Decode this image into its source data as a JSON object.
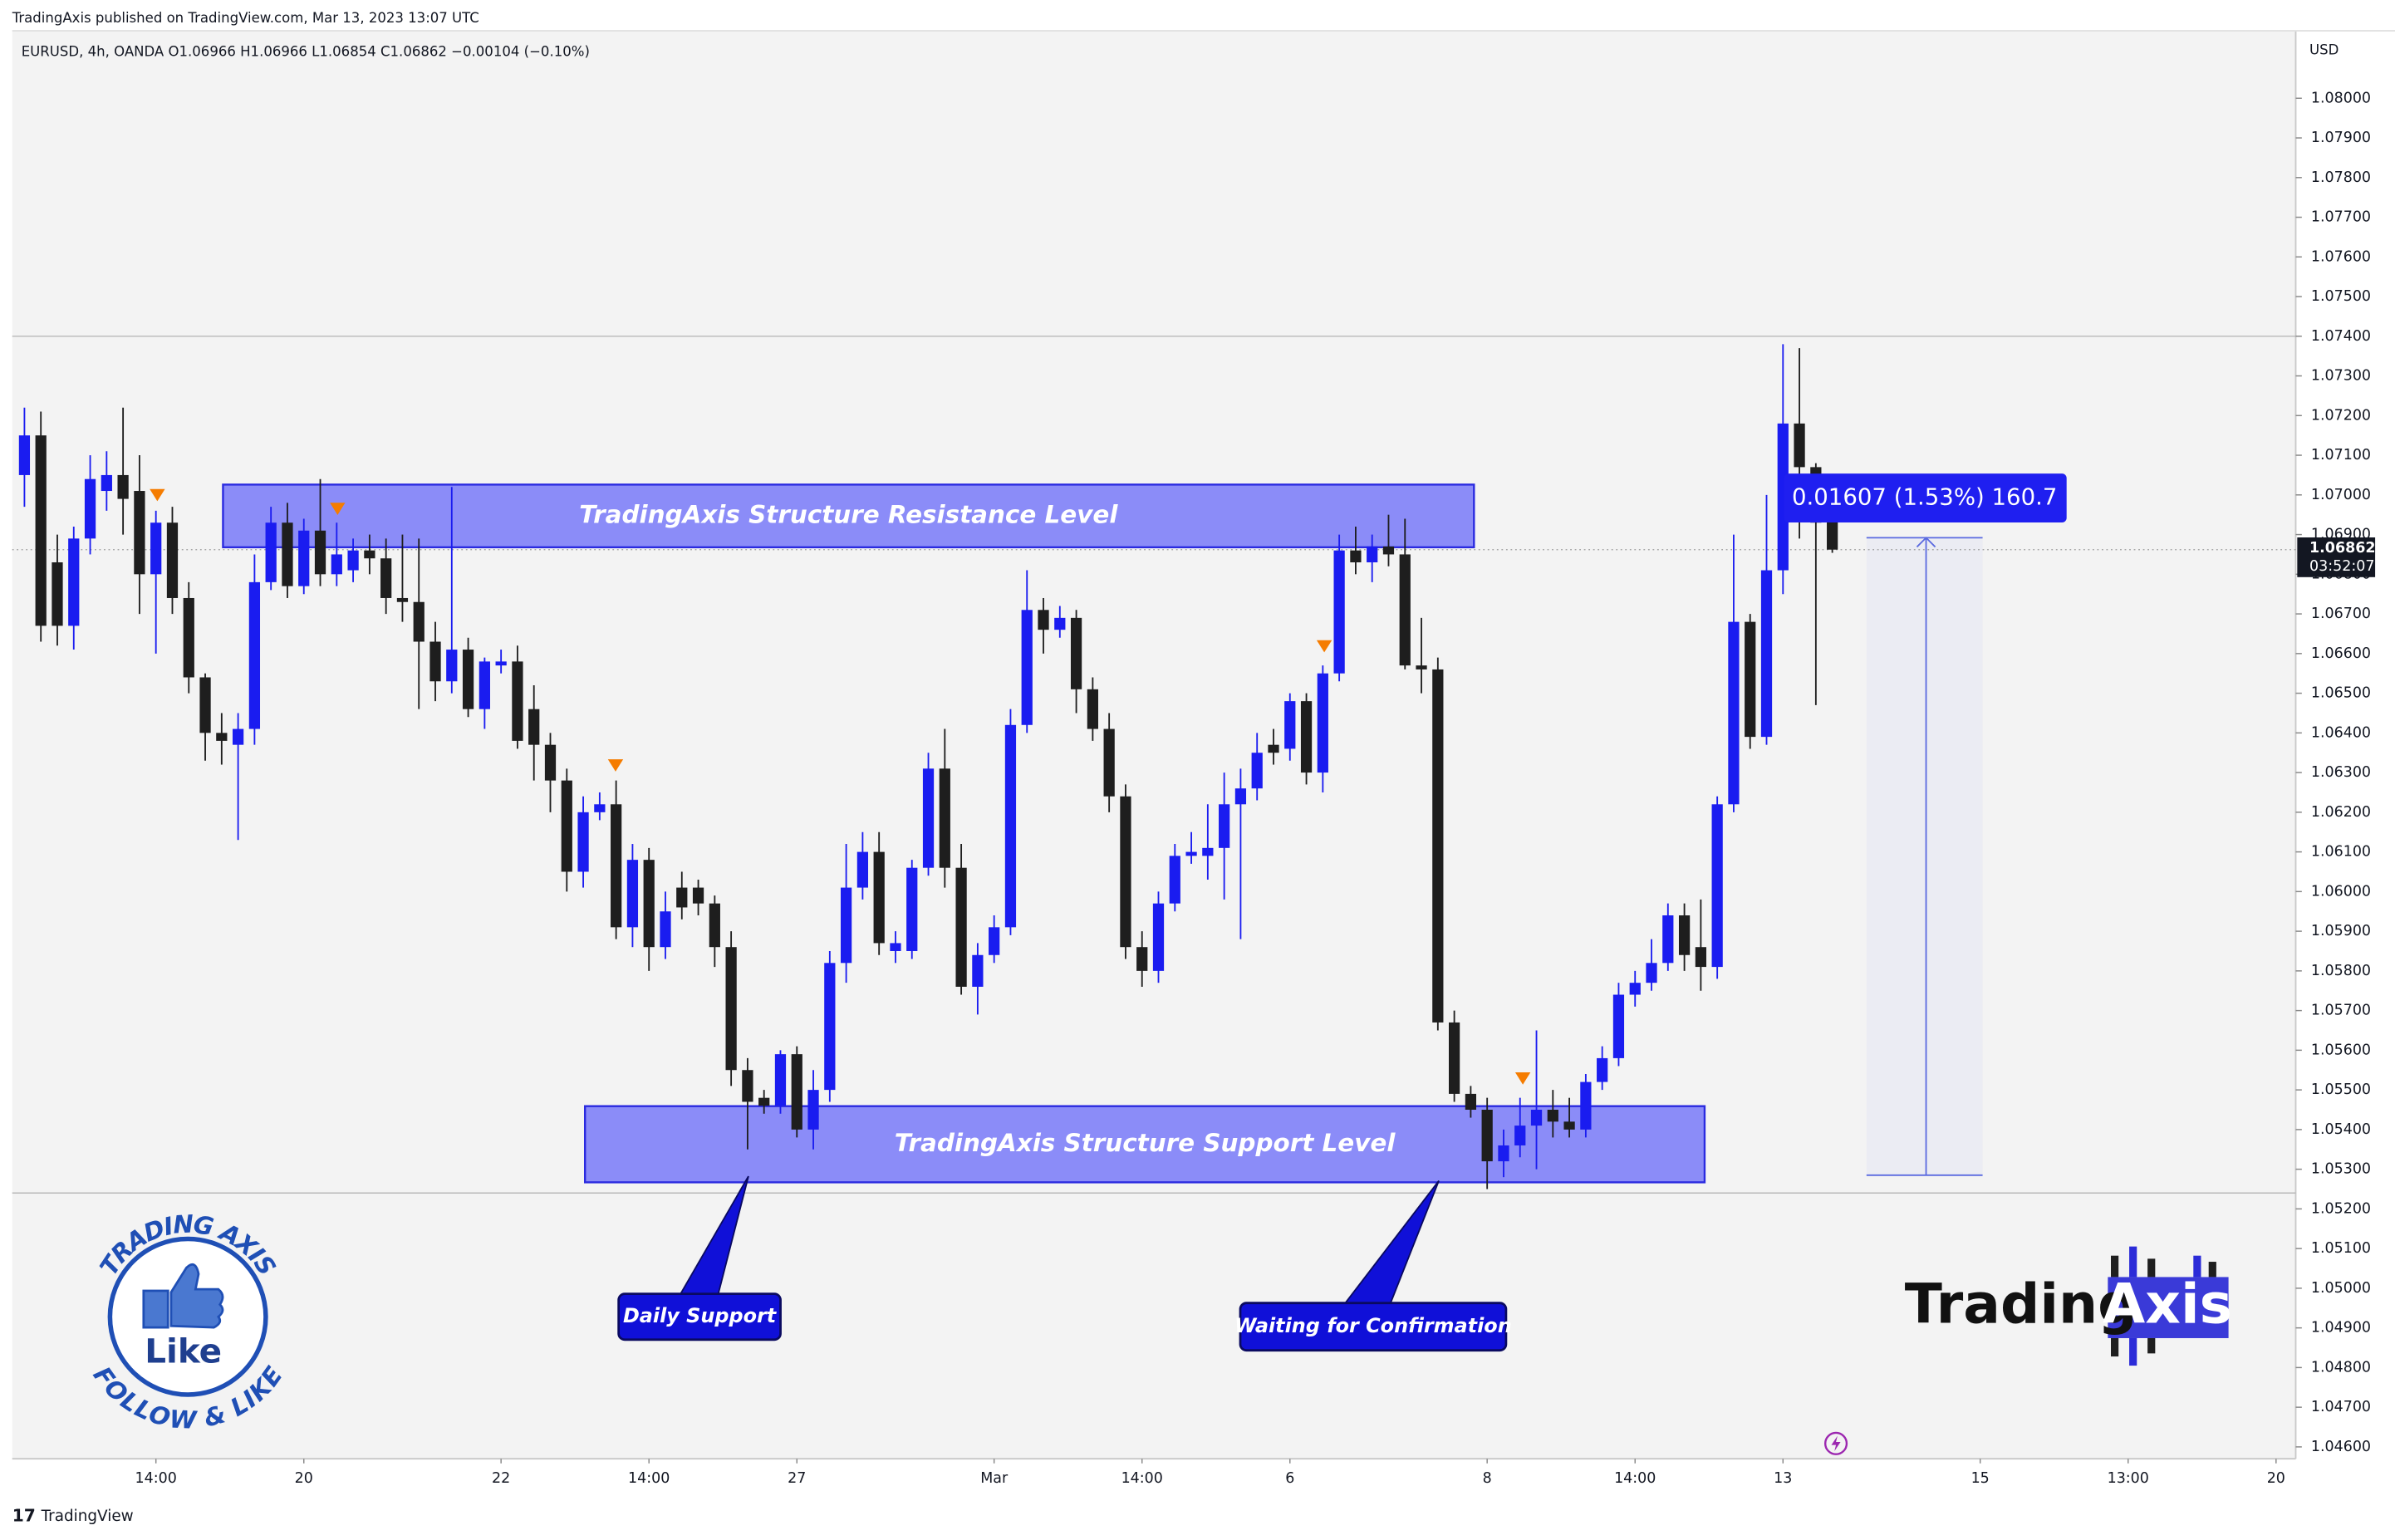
{
  "header": {
    "published": "TradingAxis published on TradingView.com, Mar 13, 2023 13:07 UTC",
    "footer": "TradingView"
  },
  "branding": {
    "logo_left": "Trading",
    "logo_right": "Axis",
    "badge_top": "TRADING AXIS",
    "badge_center": "Like",
    "badge_bottom": "FOLLOW & LIKE"
  },
  "chart_data": {
    "type": "candlestick",
    "legend": "EURUSD, 4h, OANDA   O1.06966   H1.06966   L1.06854   C1.06862   −0.00104 (−0.10%)",
    "currency": "USD",
    "up_color": "#1a1cf0",
    "down_color": "#1e1e1e",
    "grid": false,
    "categories": [
      null,
      null,
      null,
      null,
      null,
      null,
      null,
      null,
      "14:00",
      null,
      null,
      null,
      null,
      null,
      null,
      null,
      null,
      "20",
      null,
      null,
      null,
      null,
      null,
      null,
      null,
      null,
      null,
      null,
      null,
      "22",
      null,
      null,
      null,
      null,
      null,
      null,
      null,
      null,
      "14:00",
      null,
      null,
      null,
      null,
      null,
      null,
      null,
      null,
      "27",
      null,
      null,
      null,
      null,
      null,
      null,
      null,
      null,
      null,
      null,
      null,
      "Mar",
      null,
      null,
      null,
      null,
      null,
      null,
      null,
      null,
      "14:00",
      null,
      null,
      null,
      null,
      null,
      null,
      null,
      null,
      "6",
      null,
      null,
      null,
      null,
      null,
      null,
      null,
      null,
      null,
      null,
      null,
      "8",
      null,
      null,
      null,
      null,
      null,
      null,
      null,
      null,
      "14:00",
      null,
      null,
      null,
      null,
      null,
      null,
      null,
      null,
      "13",
      null,
      null,
      null,
      null,
      null,
      null,
      null,
      null,
      null,
      null,
      null,
      "15",
      null,
      null,
      null,
      null,
      null,
      null,
      null,
      null,
      "13:00",
      null,
      null,
      null,
      null,
      null,
      null,
      null,
      null,
      "20"
    ],
    "open": [
      1.0705,
      1.0715,
      1.0683,
      1.0667,
      1.0689,
      1.0701,
      1.0705,
      1.0701,
      1.068,
      1.0693,
      1.0674,
      1.0654,
      1.064,
      1.0637,
      1.0641,
      1.0678,
      1.0693,
      1.0677,
      1.0691,
      1.068,
      1.0681,
      1.0686,
      1.0684,
      1.0674,
      1.0673,
      1.0663,
      1.0653,
      1.0661,
      1.0646,
      1.0657,
      1.0658,
      1.0646,
      1.0637,
      1.0628,
      1.0605,
      1.062,
      1.0622,
      1.0591,
      1.0608,
      1.0586,
      1.0601,
      1.0601,
      1.0597,
      1.0586,
      1.0555,
      1.0548,
      1.0546,
      1.0559,
      1.054,
      1.055,
      1.0582,
      1.0601,
      1.061,
      1.0585,
      1.0585,
      1.0606,
      1.0631,
      1.0606,
      1.0576,
      1.0584,
      1.0591,
      1.0642,
      1.0671,
      1.0666,
      1.0669,
      1.0651,
      1.0641,
      1.0624,
      1.0586,
      1.058,
      1.0597,
      1.0609,
      1.0609,
      1.0611,
      1.0622,
      1.0626,
      1.0637,
      1.0636,
      1.0648,
      1.063,
      1.0655,
      1.0686,
      1.0683,
      1.0687,
      1.0685,
      1.0657,
      1.0656,
      1.0567,
      1.0549,
      1.0545,
      1.0532,
      1.0536,
      1.0541,
      1.0545,
      1.0542,
      1.054,
      1.0552,
      1.0558,
      1.0574,
      1.0577,
      1.0582,
      1.0594,
      1.0586,
      1.0581,
      1.0622,
      1.0668,
      1.0639,
      1.0681,
      1.0718,
      1.0707,
      1.06966,
      null,
      null,
      null,
      null,
      null,
      null,
      null,
      null,
      null,
      null,
      null,
      null,
      null,
      null,
      null,
      null,
      null,
      null,
      null,
      null,
      null,
      null,
      null,
      null,
      null,
      null,
      null
    ],
    "high": [
      1.0722,
      1.0721,
      1.069,
      1.0692,
      1.071,
      1.0711,
      1.0722,
      1.071,
      1.0696,
      1.0697,
      1.0678,
      1.0655,
      1.0645,
      1.0645,
      1.0685,
      1.0697,
      1.0698,
      1.0694,
      1.0704,
      1.0693,
      1.0689,
      1.069,
      1.0689,
      1.069,
      1.0689,
      1.0668,
      1.0702,
      1.0664,
      1.0659,
      1.0661,
      1.0662,
      1.0652,
      1.064,
      1.0631,
      1.0624,
      1.0625,
      1.0628,
      1.0612,
      1.0611,
      1.06,
      1.0605,
      1.0603,
      1.0599,
      1.059,
      1.0558,
      1.055,
      1.056,
      1.0561,
      1.0555,
      1.0585,
      1.0612,
      1.0615,
      1.0615,
      1.059,
      1.0608,
      1.0635,
      1.0641,
      1.0612,
      1.0587,
      1.0594,
      1.0646,
      1.0681,
      1.0674,
      1.0672,
      1.0671,
      1.0654,
      1.0645,
      1.0627,
      1.059,
      1.06,
      1.0612,
      1.0615,
      1.0622,
      1.063,
      1.0631,
      1.064,
      1.0641,
      1.065,
      1.065,
      1.0657,
      1.069,
      1.0692,
      1.069,
      1.0695,
      1.0694,
      1.0669,
      1.0659,
      1.057,
      1.0551,
      1.0548,
      1.054,
      1.0548,
      1.0565,
      1.055,
      1.0548,
      1.0554,
      1.0561,
      1.0577,
      1.058,
      1.0588,
      1.0597,
      1.0597,
      1.0598,
      1.0624,
      1.069,
      1.067,
      1.07,
      1.0738,
      1.0737,
      1.0708,
      1.06966,
      null,
      null,
      null,
      null,
      null,
      null,
      null,
      null,
      null,
      null,
      null,
      null,
      null,
      null,
      null,
      null,
      null,
      null,
      null,
      null,
      null,
      null,
      null,
      null,
      null,
      null,
      null
    ],
    "low": [
      1.0697,
      1.0663,
      1.0662,
      1.0661,
      1.0685,
      1.0696,
      1.069,
      1.067,
      1.066,
      1.067,
      1.065,
      1.0633,
      1.0632,
      1.0613,
      1.0637,
      1.0676,
      1.0674,
      1.0675,
      1.0677,
      1.0677,
      1.0678,
      1.068,
      1.067,
      1.0668,
      1.0646,
      1.0648,
      1.065,
      1.0644,
      1.0641,
      1.0655,
      1.0636,
      1.0628,
      1.062,
      1.06,
      1.0601,
      1.0618,
      1.0588,
      1.0586,
      1.058,
      1.0583,
      1.0593,
      1.0594,
      1.0581,
      1.0551,
      1.0535,
      1.0544,
      1.0544,
      1.0538,
      1.0535,
      1.0547,
      1.0577,
      1.0598,
      1.0584,
      1.0582,
      1.0583,
      1.0604,
      1.0601,
      1.0574,
      1.0569,
      1.0582,
      1.0589,
      1.064,
      1.066,
      1.0664,
      1.0645,
      1.0638,
      1.062,
      1.0583,
      1.0576,
      1.0577,
      1.0595,
      1.0607,
      1.0603,
      1.0598,
      1.0588,
      1.0623,
      1.0632,
      1.0633,
      1.0627,
      1.0625,
      1.0653,
      1.068,
      1.0678,
      1.0682,
      1.0656,
      1.065,
      1.0565,
      1.0547,
      1.0543,
      1.0525,
      1.0528,
      1.0533,
      1.053,
      1.0538,
      1.0538,
      1.0538,
      1.055,
      1.0556,
      1.0571,
      1.0575,
      1.058,
      1.058,
      1.0575,
      1.0578,
      1.062,
      1.0636,
      1.0637,
      1.0675,
      1.0689,
      1.0647,
      1.06854,
      null,
      null,
      null,
      null,
      null,
      null,
      null,
      null,
      null,
      null,
      null,
      null,
      null,
      null,
      null,
      null,
      null,
      null,
      null,
      null,
      null,
      null,
      null,
      null,
      null,
      null,
      null
    ],
    "close": [
      1.0715,
      1.0667,
      1.0667,
      1.0689,
      1.0704,
      1.0705,
      1.0699,
      1.068,
      1.0693,
      1.0674,
      1.0654,
      1.064,
      1.0638,
      1.0641,
      1.0678,
      1.0693,
      1.0677,
      1.0691,
      1.068,
      1.0685,
      1.0686,
      1.0684,
      1.0674,
      1.0673,
      1.0663,
      1.0653,
      1.0661,
      1.0646,
      1.0658,
      1.0658,
      1.0638,
      1.0637,
      1.0628,
      1.0605,
      1.062,
      1.0622,
      1.0591,
      1.0608,
      1.0586,
      1.0595,
      1.0596,
      1.0597,
      1.0586,
      1.0555,
      1.0547,
      1.0546,
      1.0559,
      1.054,
      1.055,
      1.0582,
      1.0601,
      1.061,
      1.0587,
      1.0587,
      1.0606,
      1.0631,
      1.0606,
      1.0576,
      1.0584,
      1.0591,
      1.0642,
      1.0671,
      1.0666,
      1.0669,
      1.0651,
      1.0641,
      1.0624,
      1.0586,
      1.058,
      1.0597,
      1.0609,
      1.061,
      1.0611,
      1.0622,
      1.0626,
      1.0635,
      1.0635,
      1.0648,
      1.063,
      1.0655,
      1.0686,
      1.0683,
      1.0687,
      1.0685,
      1.0657,
      1.0656,
      1.0567,
      1.0549,
      1.0545,
      1.0532,
      1.0536,
      1.0541,
      1.0545,
      1.0542,
      1.054,
      1.0552,
      1.0558,
      1.0574,
      1.0577,
      1.0582,
      1.0594,
      1.0584,
      1.0581,
      1.0622,
      1.0668,
      1.0639,
      1.0681,
      1.0718,
      1.0707,
      1.0693,
      1.06862,
      null,
      null,
      null,
      null,
      null,
      null,
      null,
      null,
      null,
      null,
      null,
      null,
      null,
      null,
      null,
      null,
      null,
      null,
      null,
      null,
      null,
      null,
      null,
      null,
      null,
      null,
      null
    ],
    "ylim": [
      1.0457,
      1.0817
    ],
    "yticks": [
      {
        "value": 1.046,
        "label": "1.04600"
      },
      {
        "value": 1.047,
        "label": "1.04700"
      },
      {
        "value": 1.048,
        "label": "1.04800"
      },
      {
        "value": 1.049,
        "label": "1.04900"
      },
      {
        "value": 1.05,
        "label": "1.05000"
      },
      {
        "value": 1.051,
        "label": "1.05100"
      },
      {
        "value": 1.052,
        "label": "1.05200"
      },
      {
        "value": 1.053,
        "label": "1.05300"
      },
      {
        "value": 1.054,
        "label": "1.05400"
      },
      {
        "value": 1.055,
        "label": "1.05500"
      },
      {
        "value": 1.056,
        "label": "1.05600"
      },
      {
        "value": 1.057,
        "label": "1.05700"
      },
      {
        "value": 1.058,
        "label": "1.05800"
      },
      {
        "value": 1.059,
        "label": "1.05900"
      },
      {
        "value": 1.06,
        "label": "1.06000"
      },
      {
        "value": 1.061,
        "label": "1.06100"
      },
      {
        "value": 1.062,
        "label": "1.06200"
      },
      {
        "value": 1.063,
        "label": "1.06300"
      },
      {
        "value": 1.064,
        "label": "1.06400"
      },
      {
        "value": 1.065,
        "label": "1.06500"
      },
      {
        "value": 1.066,
        "label": "1.06600"
      },
      {
        "value": 1.067,
        "label": "1.06700"
      },
      {
        "value": 1.068,
        "label": "1.06800"
      },
      {
        "value": 1.069,
        "label": "1.06900"
      },
      {
        "value": 1.07,
        "label": "1.07000"
      },
      {
        "value": 1.071,
        "label": "1.07100"
      },
      {
        "value": 1.072,
        "label": "1.07200"
      },
      {
        "value": 1.073,
        "label": "1.07300"
      },
      {
        "value": 1.074,
        "label": "1.07400"
      },
      {
        "value": 1.075,
        "label": "1.07500"
      },
      {
        "value": 1.076,
        "label": "1.07600"
      },
      {
        "value": 1.077,
        "label": "1.07700"
      },
      {
        "value": 1.078,
        "label": "1.07800"
      },
      {
        "value": 1.079,
        "label": "1.07900"
      },
      {
        "value": 1.08,
        "label": "1.08000"
      }
    ],
    "last_price": {
      "value": 1.06862,
      "label": "1.06862"
    },
    "countdown": "03:52:07",
    "levels": [
      1.074,
      1.0524
    ],
    "zones": [
      {
        "label": "TradingAxis Structure Resistance Level",
        "range": [
          1.06868,
          1.07026
        ]
      },
      {
        "label": "TradingAxis Structure Support Level",
        "range": [
          1.05267,
          1.05459
        ]
      }
    ],
    "callouts": [
      "Daily Support",
      "Waiting for Confirmation"
    ],
    "measure": {
      "from": 1.05285,
      "to": 1.06892,
      "label": "0.01607 (1.53%) 160.7"
    }
  }
}
